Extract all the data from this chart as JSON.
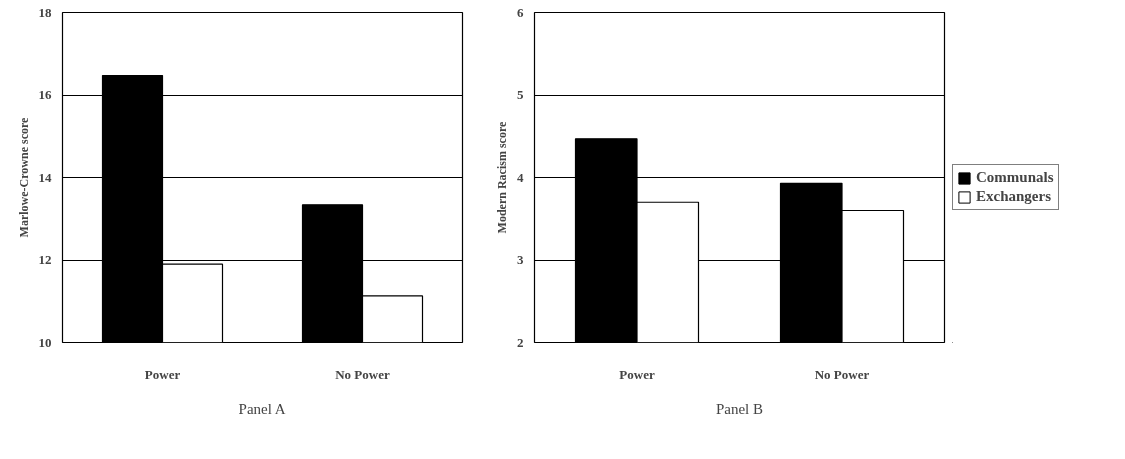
{
  "chart_data": [
    {
      "type": "bar",
      "title": "Panel A",
      "ylabel": "Marlowe-Crowne score",
      "categories": [
        "Power",
        "No Power"
      ],
      "series": [
        {
          "color": "#000000",
          "values": [
            16.47,
            13.34
          ]
        },
        {
          "color": "#ffffff",
          "values": [
            11.9,
            11.13
          ]
        }
      ],
      "ylim": [
        10,
        18
      ],
      "yticks": [
        10,
        12,
        14,
        16,
        18
      ],
      "grid": "y",
      "legend": false
    },
    {
      "type": "bar",
      "title": "Panel B",
      "ylabel": "Modern Racism score",
      "categories": [
        "Power",
        "No Power"
      ],
      "series": [
        {
          "name": "Communals",
          "color": "#000000",
          "values": [
            4.47,
            3.93
          ]
        },
        {
          "name": "Exchangers",
          "color": "#ffffff",
          "values": [
            3.7,
            3.6
          ]
        }
      ],
      "ylim": [
        2,
        6
      ],
      "yticks": [
        2,
        3,
        4,
        5,
        6
      ],
      "grid": "y",
      "legend": "right"
    }
  ]
}
